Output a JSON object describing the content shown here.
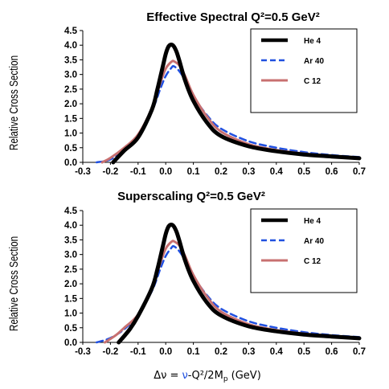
{
  "chart_data": [
    {
      "type": "line",
      "title": "Effective Spectral Q²=0.5  GeV²",
      "ylabel": "Relative Cross Section",
      "xlim": [
        -0.3,
        0.7
      ],
      "ylim": [
        0,
        4.5
      ],
      "x_ticks": [
        "-0.3",
        "-0.2",
        "-0.1",
        "0.0",
        "0.1",
        "0.2",
        "0.3",
        "0.4",
        "0.5",
        "0.6",
        "0.7"
      ],
      "y_ticks": [
        "0.0",
        "0.5",
        "1.0",
        "1.5",
        "2.0",
        "2.5",
        "3.0",
        "3.5",
        "4.0",
        "4.5"
      ],
      "legend_position": "top-right",
      "series": [
        {
          "name": "He 4",
          "color": "#000000",
          "style": "solid",
          "x": [
            -0.19,
            -0.15,
            -0.1,
            -0.05,
            -0.03,
            -0.01,
            0.0,
            0.01,
            0.02,
            0.03,
            0.04,
            0.05,
            0.07,
            0.1,
            0.15,
            0.2,
            0.3,
            0.4,
            0.5,
            0.6,
            0.7
          ],
          "y": [
            0.0,
            0.4,
            0.85,
            1.8,
            2.5,
            3.3,
            3.7,
            3.95,
            4.02,
            3.95,
            3.75,
            3.45,
            2.8,
            2.1,
            1.35,
            0.9,
            0.55,
            0.38,
            0.27,
            0.2,
            0.14
          ]
        },
        {
          "name": "Ar 40",
          "color": "#2050e0",
          "style": "dashed",
          "x": [
            -0.25,
            -0.2,
            -0.15,
            -0.1,
            -0.05,
            -0.02,
            0.0,
            0.02,
            0.03,
            0.05,
            0.07,
            0.1,
            0.15,
            0.2,
            0.3,
            0.4,
            0.5,
            0.6,
            0.7
          ],
          "y": [
            0.0,
            0.1,
            0.45,
            0.95,
            1.75,
            2.5,
            2.95,
            3.22,
            3.28,
            3.1,
            2.8,
            2.25,
            1.6,
            1.15,
            0.72,
            0.5,
            0.35,
            0.25,
            0.18
          ]
        },
        {
          "name": "C 12",
          "color": "#c87070",
          "style": "solid",
          "x": [
            -0.23,
            -0.2,
            -0.15,
            -0.1,
            -0.05,
            -0.02,
            0.0,
            0.02,
            0.03,
            0.05,
            0.07,
            0.1,
            0.15,
            0.2,
            0.3,
            0.4,
            0.5,
            0.6,
            0.7
          ],
          "y": [
            0.0,
            0.15,
            0.5,
            0.95,
            1.85,
            2.7,
            3.2,
            3.43,
            3.45,
            3.3,
            2.95,
            2.3,
            1.55,
            1.05,
            0.62,
            0.42,
            0.3,
            0.22,
            0.16
          ]
        }
      ]
    },
    {
      "type": "line",
      "title": "Superscaling Q²=0.5  GeV²",
      "ylabel": "Relative Cross Section",
      "xlabel_parts": [
        "Δν =  ",
        "ν",
        "-Q²/2M",
        "p",
        " (GeV)"
      ],
      "xlim": [
        -0.3,
        0.7
      ],
      "ylim": [
        0,
        4.5
      ],
      "x_ticks": [
        "-0.3",
        "-0.2",
        "-0.1",
        "0.0",
        "0.1",
        "0.2",
        "0.3",
        "0.4",
        "0.5",
        "0.6",
        "0.7"
      ],
      "y_ticks": [
        "0.0",
        "0.5",
        "1.0",
        "1.5",
        "2.0",
        "2.5",
        "3.0",
        "3.5",
        "4.0",
        "4.5"
      ],
      "legend_position": "top-right",
      "series": [
        {
          "name": "He 4",
          "color": "#000000",
          "style": "solid",
          "x": [
            -0.17,
            -0.13,
            -0.1,
            -0.05,
            -0.03,
            -0.01,
            0.0,
            0.01,
            0.02,
            0.03,
            0.04,
            0.05,
            0.07,
            0.1,
            0.15,
            0.2,
            0.3,
            0.4,
            0.5,
            0.6,
            0.7
          ],
          "y": [
            0.0,
            0.45,
            0.9,
            1.85,
            2.5,
            3.3,
            3.7,
            3.95,
            4.02,
            3.95,
            3.75,
            3.45,
            2.8,
            2.1,
            1.35,
            0.92,
            0.55,
            0.38,
            0.27,
            0.2,
            0.14
          ]
        },
        {
          "name": "Ar 40",
          "color": "#2050e0",
          "style": "dashed",
          "x": [
            -0.25,
            -0.2,
            -0.15,
            -0.1,
            -0.05,
            -0.02,
            0.0,
            0.02,
            0.03,
            0.05,
            0.07,
            0.1,
            0.15,
            0.2,
            0.3,
            0.4,
            0.5,
            0.6,
            0.7
          ],
          "y": [
            0.0,
            0.15,
            0.45,
            0.95,
            1.75,
            2.5,
            2.95,
            3.22,
            3.28,
            3.1,
            2.8,
            2.25,
            1.6,
            1.15,
            0.72,
            0.5,
            0.35,
            0.25,
            0.18
          ]
        },
        {
          "name": "C 12",
          "color": "#c87070",
          "style": "solid",
          "x": [
            -0.22,
            -0.18,
            -0.15,
            -0.1,
            -0.05,
            -0.02,
            0.0,
            0.02,
            0.03,
            0.05,
            0.07,
            0.1,
            0.15,
            0.2,
            0.3,
            0.4,
            0.5,
            0.6,
            0.7
          ],
          "y": [
            0.0,
            0.25,
            0.5,
            0.95,
            1.85,
            2.7,
            3.2,
            3.43,
            3.45,
            3.3,
            2.95,
            2.3,
            1.55,
            1.05,
            0.62,
            0.42,
            0.3,
            0.22,
            0.16
          ]
        }
      ]
    }
  ]
}
